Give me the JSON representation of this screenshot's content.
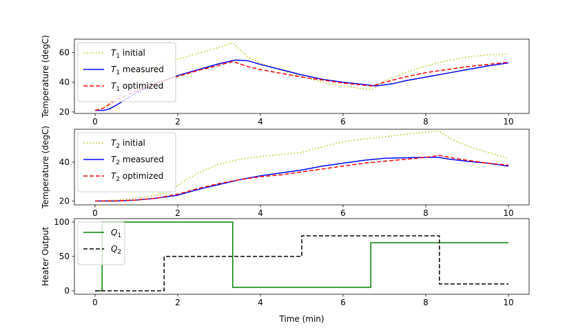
{
  "chart_data": [
    {
      "type": "line",
      "ylabel": "Temperature (degC)",
      "xlim": [
        -0.5,
        10.5
      ],
      "ylim": [
        19,
        69
      ],
      "xticks": [
        "0",
        "2",
        "4",
        "6",
        "8",
        "10"
      ],
      "yticks": [
        "20",
        "40",
        "60"
      ],
      "legend_position": "upper-left",
      "series": [
        {
          "legend_label": "T",
          "legend_sub": "1",
          "legend_rest": " initial",
          "color": "#bfbf00",
          "style": "dotted",
          "x": [
            0,
            0.3,
            0.6,
            1.0,
            1.5,
            2.0,
            2.5,
            3.0,
            3.33,
            3.7,
            4.0,
            4.5,
            5.0,
            5.5,
            6.0,
            6.5,
            6.7,
            7.0,
            7.5,
            8.0,
            8.5,
            9.0,
            9.5,
            10.0
          ],
          "y": [
            21,
            24,
            35,
            44,
            51,
            55.5,
            59.5,
            63.5,
            66.5,
            57,
            53,
            48,
            44,
            40,
            37.5,
            35.5,
            35.2,
            41,
            46.5,
            51,
            54.5,
            57,
            58.5,
            59
          ]
        },
        {
          "legend_label": "T",
          "legend_sub": "1",
          "legend_rest": " measured",
          "color": "#0000ff",
          "style": "solid",
          "x": [
            0,
            0.2,
            0.35,
            0.6,
            1.0,
            1.5,
            2.0,
            2.5,
            3.0,
            3.4,
            3.7,
            4.0,
            4.5,
            5.0,
            5.5,
            6.0,
            6.5,
            6.8,
            7.2,
            7.5,
            8.0,
            8.5,
            9.0,
            9.5,
            10.0
          ],
          "y": [
            21,
            21,
            22,
            26,
            33,
            39.5,
            44.5,
            48.5,
            52.5,
            55,
            54.5,
            52,
            48.5,
            45,
            42,
            40,
            38.5,
            37.5,
            39,
            41,
            43.5,
            46,
            48.5,
            51,
            53
          ]
        },
        {
          "legend_label": "T",
          "legend_sub": "1",
          "legend_rest": " optimized",
          "color": "#ff0000",
          "style": "dashed",
          "x": [
            0,
            0.2,
            0.5,
            1.0,
            1.5,
            2.0,
            2.5,
            3.0,
            3.33,
            3.7,
            4.0,
            4.5,
            5.0,
            5.5,
            6.0,
            6.5,
            6.7,
            7.0,
            7.5,
            8.0,
            8.5,
            9.0,
            9.5,
            10.0
          ],
          "y": [
            21,
            22.5,
            28,
            34,
            39.5,
            44,
            48,
            51.5,
            54,
            50.5,
            48.5,
            46,
            43.5,
            41.5,
            39.5,
            38,
            37.5,
            40,
            43.5,
            46.5,
            48.5,
            50.5,
            52,
            53.5
          ]
        }
      ]
    },
    {
      "type": "line",
      "ylabel": "Temperature (degC)",
      "xlim": [
        -0.5,
        10.5
      ],
      "ylim": [
        18,
        57
      ],
      "xticks": [
        "0",
        "2",
        "4",
        "6",
        "8",
        "10"
      ],
      "yticks": [
        "20",
        "40"
      ],
      "legend_position": "upper-left",
      "series": [
        {
          "legend_label": "T",
          "legend_sub": "2",
          "legend_rest": " initial",
          "color": "#bfbf00",
          "style": "dotted",
          "x": [
            0,
            0.5,
            1.0,
            1.5,
            1.8,
            2.2,
            2.6,
            3.0,
            3.5,
            4.0,
            4.5,
            5.0,
            5.5,
            6.0,
            6.5,
            7.0,
            7.5,
            8.0,
            8.33,
            8.6,
            9.0,
            9.5,
            10.0
          ],
          "y": [
            20,
            20.5,
            21.5,
            23,
            25,
            31,
            35.5,
            39,
            41.5,
            43,
            44,
            45,
            48,
            50.5,
            52,
            53,
            54.5,
            55.5,
            56,
            52,
            48.5,
            45,
            42
          ]
        },
        {
          "legend_label": "T",
          "legend_sub": "2",
          "legend_rest": " measured",
          "color": "#0000ff",
          "style": "solid",
          "x": [
            0,
            0.5,
            1.0,
            1.5,
            2.0,
            2.5,
            3.0,
            3.5,
            4.0,
            4.5,
            5.0,
            5.5,
            6.0,
            6.5,
            7.0,
            7.5,
            8.0,
            8.3,
            8.6,
            9.0,
            9.5,
            10.0
          ],
          "y": [
            20,
            20,
            20.5,
            21.5,
            23,
            26,
            28.5,
            31,
            33,
            34.5,
            36,
            38,
            39.5,
            41,
            42,
            42.3,
            42.5,
            42.5,
            41.5,
            40.5,
            39.5,
            38
          ]
        },
        {
          "legend_label": "T",
          "legend_sub": "2",
          "legend_rest": " optimized",
          "color": "#ff0000",
          "style": "dashed",
          "x": [
            0,
            0.5,
            1.0,
            1.5,
            2.0,
            2.5,
            3.0,
            3.5,
            4.0,
            4.5,
            5.0,
            5.5,
            6.0,
            6.5,
            7.0,
            7.5,
            8.0,
            8.33,
            8.7,
            9.0,
            9.5,
            10.0
          ],
          "y": [
            20,
            20,
            20.5,
            21.5,
            23.5,
            26.5,
            29,
            31,
            32.5,
            33.5,
            35,
            36.5,
            38,
            39.5,
            40.5,
            41.5,
            42.5,
            43.5,
            42,
            41,
            39.5,
            38.5
          ]
        }
      ]
    },
    {
      "type": "line",
      "ylabel": "Heater Output",
      "xlabel": "Time (min)",
      "xlim": [
        -0.5,
        10.5
      ],
      "ylim": [
        -5,
        105
      ],
      "xticks": [
        "0",
        "2",
        "4",
        "6",
        "8",
        "10"
      ],
      "yticks": [
        "0",
        "50",
        "100"
      ],
      "legend_position": "upper-left",
      "series": [
        {
          "legend_label": "Q",
          "legend_sub": "1",
          "legend_rest": "",
          "color": "#008000",
          "style": "solid",
          "x": [
            0,
            0.17,
            0.17,
            3.33,
            3.33,
            6.67,
            6.67,
            10.0
          ],
          "y": [
            0,
            0,
            100,
            100,
            5,
            5,
            70,
            70
          ]
        },
        {
          "legend_label": "Q",
          "legend_sub": "2",
          "legend_rest": "",
          "color": "#000000",
          "style": "dashed",
          "x": [
            0,
            1.67,
            1.67,
            5.0,
            5.0,
            8.33,
            8.33,
            10.0
          ],
          "y": [
            0,
            0,
            50,
            50,
            80,
            80,
            10,
            10
          ]
        }
      ]
    }
  ]
}
